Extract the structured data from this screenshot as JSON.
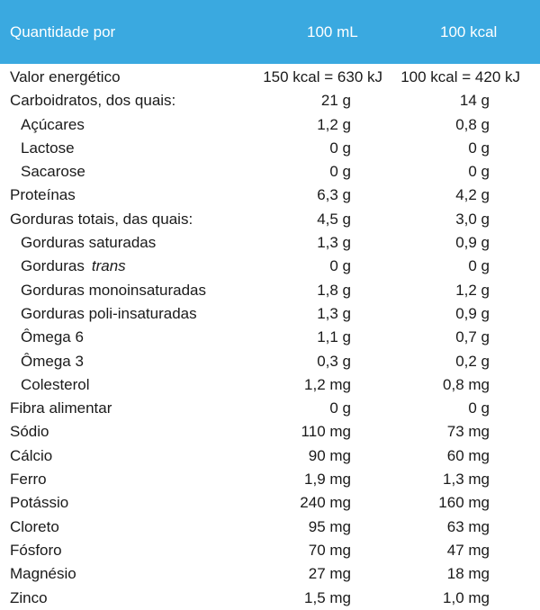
{
  "header": {
    "label": "Quantidade por",
    "col1": "100 mL",
    "col2": "100 kcal"
  },
  "rows": [
    {
      "label": "Valor energético",
      "v1": "150 kcal = 630 kJ",
      "v2": "100 kcal = 420 kJ"
    },
    {
      "label": "Carboidratos, dos quais:",
      "v1": "21 g",
      "v2": "14 g"
    },
    {
      "label": "Açúcares",
      "v1": "1,2 g",
      "v2": "0,8 g"
    },
    {
      "label": "Lactose",
      "v1": "0 g",
      "v2": "0 g"
    },
    {
      "label": "Sacarose",
      "v1": "0 g",
      "v2": "0 g"
    },
    {
      "label": "Proteínas",
      "v1": "6,3 g",
      "v2": "4,2 g"
    },
    {
      "label": "Gorduras totais, das quais:",
      "v1": "4,5 g",
      "v2": "3,0 g"
    },
    {
      "label": "Gorduras saturadas",
      "v1": "1,3 g",
      "v2": "0,9 g"
    },
    {
      "label": "Gorduras",
      "label_italic": "trans",
      "v1": "0 g",
      "v2": "0 g"
    },
    {
      "label": "Gorduras monoinsaturadas",
      "v1": "1,8 g",
      "v2": "1,2 g"
    },
    {
      "label": "Gorduras poli-insaturadas",
      "v1": "1,3 g",
      "v2": "0,9 g"
    },
    {
      "label": "Ômega 6",
      "v1": "1,1 g",
      "v2": "0,7 g"
    },
    {
      "label": "Ômega 3",
      "v1": "0,3 g",
      "v2": "0,2 g"
    },
    {
      "label": "Colesterol",
      "v1": "1,2 mg",
      "v2": "0,8 mg"
    },
    {
      "label": "Fibra alimentar",
      "v1": "0 g",
      "v2": "0 g"
    },
    {
      "label": "Sódio",
      "v1": "110 mg",
      "v2": "73 mg"
    },
    {
      "label": "Cálcio",
      "v1": "90 mg",
      "v2": "60 mg"
    },
    {
      "label": "Ferro",
      "v1": "1,9 mg",
      "v2": "1,3 mg"
    },
    {
      "label": "Potássio",
      "v1": "240 mg",
      "v2": "160 mg"
    },
    {
      "label": "Cloreto",
      "v1": "95 mg",
      "v2": "63 mg"
    },
    {
      "label": "Fósforo",
      "v1": "70 mg",
      "v2": "47 mg"
    },
    {
      "label": "Magnésio",
      "v1": "27 mg",
      "v2": "18 mg"
    },
    {
      "label": "Zinco",
      "v1": "1,5 mg",
      "v2": "1,0 mg"
    }
  ],
  "colors": {
    "header_bg": "#3aa9e0",
    "header_text": "#ffffff",
    "body_text": "#1a1a1a"
  }
}
